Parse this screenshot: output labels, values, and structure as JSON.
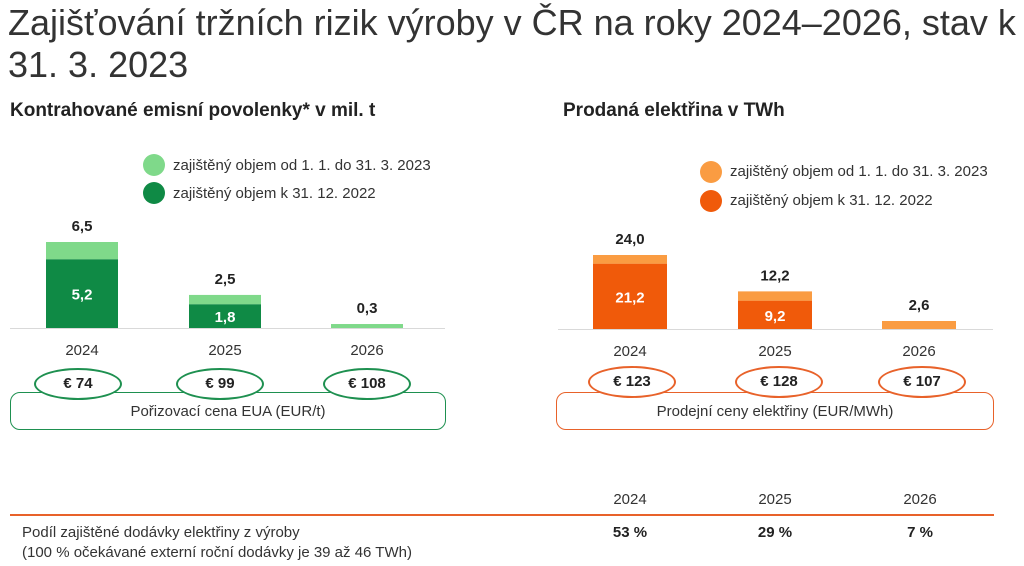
{
  "title": "Zajišťování tržních rizik výroby v ČR na roky 2024–2026, stav k 31. 3. 2023",
  "chart_data": [
    {
      "type": "bar",
      "stacked": true,
      "title": "Kontrahované emisní povolenky* v mil. t",
      "categories": [
        "2024",
        "2025",
        "2026"
      ],
      "series": [
        {
          "name": "zajištěný objem k 31. 12. 2022",
          "values": [
            5.2,
            1.8,
            0
          ],
          "labels": [
            "5,2",
            "1,8",
            ""
          ],
          "color": "#0f8a45"
        },
        {
          "name": "zajištěný objem od 1. 1. do 31. 3. 2023",
          "values": [
            1.3,
            0.7,
            0.3
          ],
          "color": "#7fd98a"
        }
      ],
      "totals": [
        6.5,
        2.5,
        0.3
      ],
      "total_labels": [
        "6,5",
        "2,5",
        "0,3"
      ],
      "ylim": [
        0,
        6.5
      ]
    },
    {
      "type": "bar",
      "stacked": true,
      "title": "Prodaná elektřina v TWh",
      "categories": [
        "2024",
        "2025",
        "2026"
      ],
      "series": [
        {
          "name": "zajištěný objem k 31. 12. 2022",
          "values": [
            21.2,
            9.2,
            0
          ],
          "labels": [
            "21,2",
            "9,2",
            ""
          ],
          "color": "#f05a0a"
        },
        {
          "name": "zajištěný objem od 1. 1. do 31. 3. 2023",
          "values": [
            2.8,
            3.0,
            2.6
          ],
          "color": "#fa9c42"
        }
      ],
      "totals": [
        24.0,
        12.2,
        2.6
      ],
      "total_labels": [
        "24,0",
        "12,2",
        "2,6"
      ],
      "ylim": [
        0,
        24.0
      ]
    }
  ],
  "price_panels": [
    {
      "label": "Pořizovací cena EUA (EUR/t)",
      "values": [
        "€ 74",
        "€ 99",
        "€ 108"
      ],
      "color": "#1e9050"
    },
    {
      "label": "Prodejní ceny elektřiny (EUR/MWh)",
      "values": [
        "€ 123",
        "€ 128",
        "€ 107"
      ],
      "color": "#e8622a"
    }
  ],
  "bottom_table": {
    "years": [
      "2024",
      "2025",
      "2026"
    ],
    "row_label_line1": "Podíl zajištěné dodávky elektřiny z výroby",
    "row_label_line2": "(100 % očekávané externí roční dodávky je 39 až 46 TWh)",
    "values": [
      "53 %",
      "29 %",
      "7 %"
    ]
  }
}
